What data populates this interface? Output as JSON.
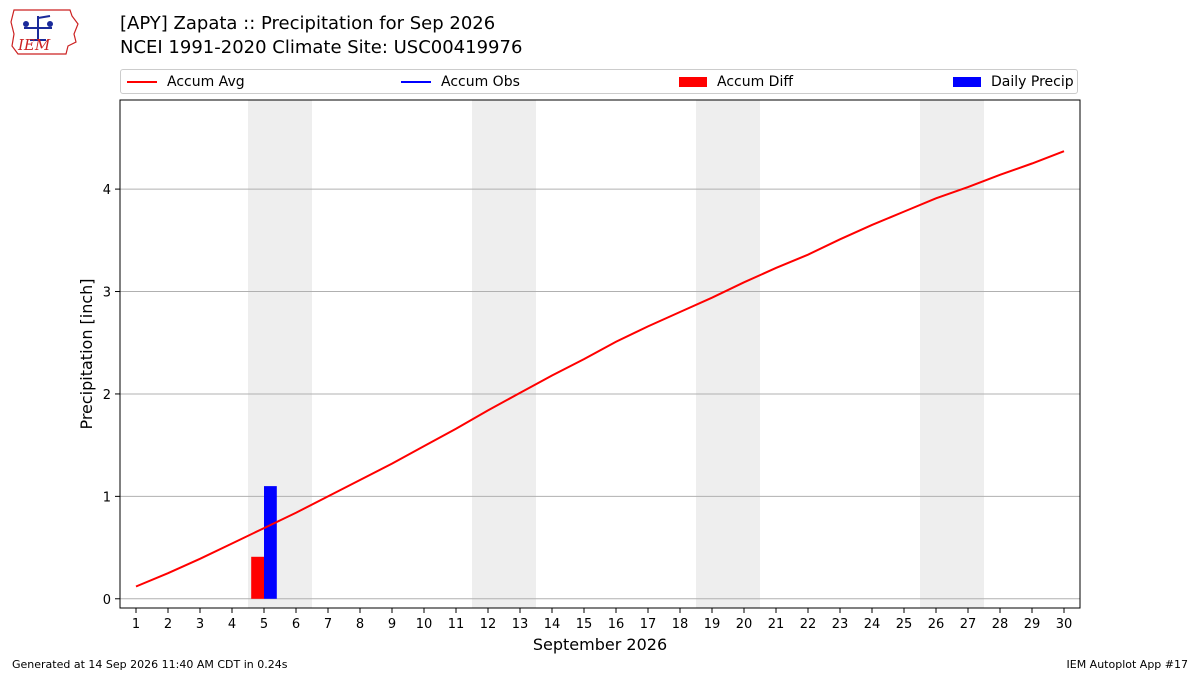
{
  "title": {
    "line1": "[APY] Zapata :: Precipitation for Sep 2026",
    "line2": "NCEI 1991-2020 Climate Site: USC00419976"
  },
  "logo": {
    "text": "IEM",
    "icon": "iem-logo-icon"
  },
  "legend": {
    "placement": "top",
    "items": [
      {
        "label": "Accum Avg",
        "kind": "line",
        "color": "#ff0000"
      },
      {
        "label": "Accum Obs",
        "kind": "line",
        "color": "#0000ff"
      },
      {
        "label": "Accum Diff",
        "kind": "bar",
        "color": "#ff0000"
      },
      {
        "label": "Daily Precip",
        "kind": "bar",
        "color": "#0000ff"
      }
    ]
  },
  "footer": {
    "left": "Generated at 14 Sep 2026 11:40 AM CDT in 0.24s",
    "right": "IEM Autoplot App #17"
  },
  "chart_data": {
    "type": "line",
    "title": "[APY] Zapata :: Precipitation for Sep 2026",
    "xlabel": "September 2026",
    "ylabel": "Precipitation [inch]",
    "xlim": [
      0.5,
      30.5
    ],
    "ylim": [
      -0.09,
      4.87
    ],
    "x_ticks": [
      1,
      2,
      3,
      4,
      5,
      6,
      7,
      8,
      9,
      10,
      11,
      12,
      13,
      14,
      15,
      16,
      17,
      18,
      19,
      20,
      21,
      22,
      23,
      24,
      25,
      26,
      27,
      28,
      29,
      30
    ],
    "y_ticks": [
      0,
      1,
      2,
      3,
      4
    ],
    "grid": "horizontal",
    "weekend_shading": [
      [
        4.5,
        6.5
      ],
      [
        11.5,
        13.5
      ],
      [
        18.5,
        20.5
      ],
      [
        25.5,
        27.5
      ]
    ],
    "series": [
      {
        "name": "Accum Avg",
        "type": "line",
        "color": "#ff0000",
        "x": [
          1,
          2,
          3,
          4,
          5,
          6,
          7,
          8,
          9,
          10,
          11,
          12,
          13,
          14,
          15,
          16,
          17,
          18,
          19,
          20,
          21,
          22,
          23,
          24,
          25,
          26,
          27,
          28,
          29,
          30
        ],
        "values": [
          0.12,
          0.25,
          0.39,
          0.54,
          0.69,
          0.84,
          1.0,
          1.16,
          1.32,
          1.49,
          1.66,
          1.84,
          2.01,
          2.18,
          2.34,
          2.51,
          2.66,
          2.8,
          2.94,
          3.09,
          3.23,
          3.36,
          3.51,
          3.65,
          3.78,
          3.91,
          4.02,
          4.14,
          4.25,
          4.37
        ]
      },
      {
        "name": "Accum Diff",
        "type": "bar",
        "color": "#ff0000",
        "x": [
          5
        ],
        "values": [
          0.41
        ]
      },
      {
        "name": "Daily Precip",
        "type": "bar",
        "color": "#0000ff",
        "x": [
          5
        ],
        "values": [
          1.1
        ]
      }
    ]
  }
}
